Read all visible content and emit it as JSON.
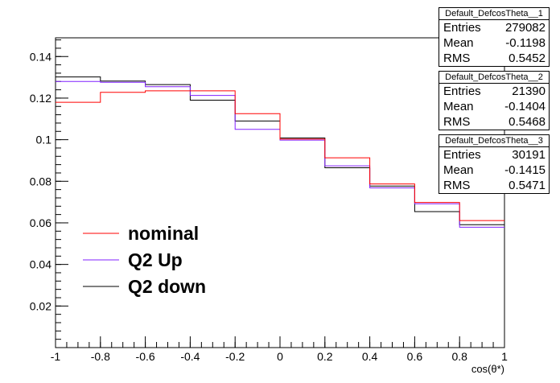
{
  "chart_data": {
    "type": "line",
    "step": true,
    "x_bin_edges": [
      -1,
      -0.8,
      -0.6,
      -0.4,
      -0.2,
      0,
      0.2,
      0.4,
      0.6,
      0.8,
      1
    ],
    "xlabel": "cos(θ*)",
    "ylabel": "",
    "title": "",
    "xlim": [
      -1,
      1
    ],
    "ylim": [
      0,
      0.149
    ],
    "x_ticks": [
      -1,
      -0.8,
      -0.6,
      -0.4,
      -0.2,
      0,
      0.2,
      0.4,
      0.6,
      0.8,
      1
    ],
    "x_tick_labels": [
      "-1",
      "-0.8",
      "-0.6",
      "-0.4",
      "-0.2",
      "0",
      "0.2",
      "0.4",
      "0.6",
      "0.8",
      "1"
    ],
    "y_ticks": [
      0.02,
      0.04,
      0.06,
      0.08,
      0.1,
      0.12,
      0.14
    ],
    "y_tick_labels": [
      "0.02",
      "0.04",
      "0.06",
      "0.08",
      "0.1",
      "0.12",
      "0.14"
    ],
    "grid": false,
    "legend_position": "bottom-left",
    "series": [
      {
        "name": "nominal",
        "color": "#ff0000",
        "values": [
          0.118,
          0.1228,
          0.1235,
          0.1235,
          0.1125,
          0.1003,
          0.0913,
          0.0787,
          0.0698,
          0.0611
        ]
      },
      {
        "name": "Q2 Up",
        "color": "#8020ff",
        "values": [
          0.128,
          0.1276,
          0.1255,
          0.1213,
          0.105,
          0.0998,
          0.0874,
          0.0768,
          0.0692,
          0.0579
        ]
      },
      {
        "name": "Q2 down",
        "color": "#000000",
        "values": [
          0.1302,
          0.1282,
          0.1265,
          0.119,
          0.109,
          0.1008,
          0.0865,
          0.0777,
          0.0654,
          0.0591
        ]
      }
    ]
  },
  "stat_boxes": [
    {
      "title": "Default_DefcosTheta__1",
      "rows": [
        {
          "label": "Entries",
          "value": "279082"
        },
        {
          "label": "Mean",
          "value": "-0.1198"
        },
        {
          "label": "RMS",
          "value": "0.5452"
        }
      ]
    },
    {
      "title": "Default_DefcosTheta__2",
      "rows": [
        {
          "label": "Entries",
          "value": "21390"
        },
        {
          "label": "Mean",
          "value": "-0.1404"
        },
        {
          "label": "RMS",
          "value": "0.5468"
        }
      ]
    },
    {
      "title": "Default_DefcosTheta__3",
      "rows": [
        {
          "label": "Entries",
          "value": "30191"
        },
        {
          "label": "Mean",
          "value": "-0.1415"
        },
        {
          "label": "RMS",
          "value": "0.5471"
        }
      ]
    }
  ]
}
